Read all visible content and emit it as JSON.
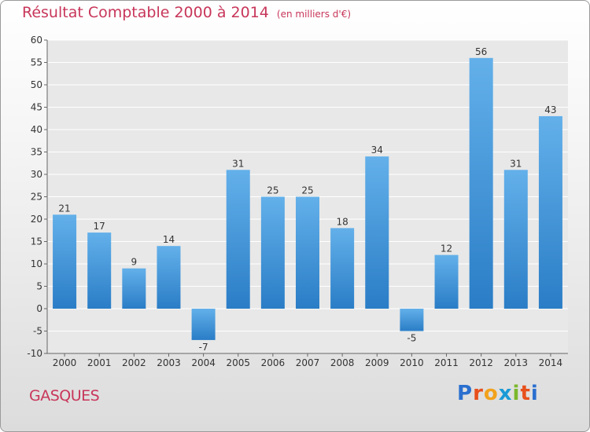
{
  "title": "Résultat Comptable 2000 à 2014",
  "subtitle": "(en milliers d'€)",
  "town": "GASQUES",
  "logo": {
    "letters": [
      "P",
      "r",
      "o",
      "x",
      "i",
      "t",
      "i"
    ],
    "colors": [
      "#2a6fcf",
      "#e8501c",
      "#f2a21c",
      "#1a9ad6",
      "#7bb82c",
      "#e8501c",
      "#2a6fcf"
    ]
  },
  "colors": {
    "bar_top": "#63b0ea",
    "bar_bottom": "#2a7dc6",
    "text": "#c8365a",
    "grid": "#ffffff",
    "axis": "#666666"
  },
  "chart_data": {
    "type": "bar",
    "categories": [
      "2000",
      "2001",
      "2002",
      "2003",
      "2004",
      "2005",
      "2006",
      "2007",
      "2008",
      "2009",
      "2010",
      "2011",
      "2012",
      "2013",
      "2014"
    ],
    "values": [
      21,
      17,
      9,
      14,
      -7,
      31,
      25,
      25,
      18,
      34,
      -5,
      12,
      56,
      31,
      43
    ],
    "ylim": [
      -10,
      60
    ],
    "yticks": [
      -10,
      -5,
      0,
      5,
      10,
      15,
      20,
      25,
      30,
      35,
      40,
      45,
      50,
      55,
      60
    ],
    "grid": true
  }
}
